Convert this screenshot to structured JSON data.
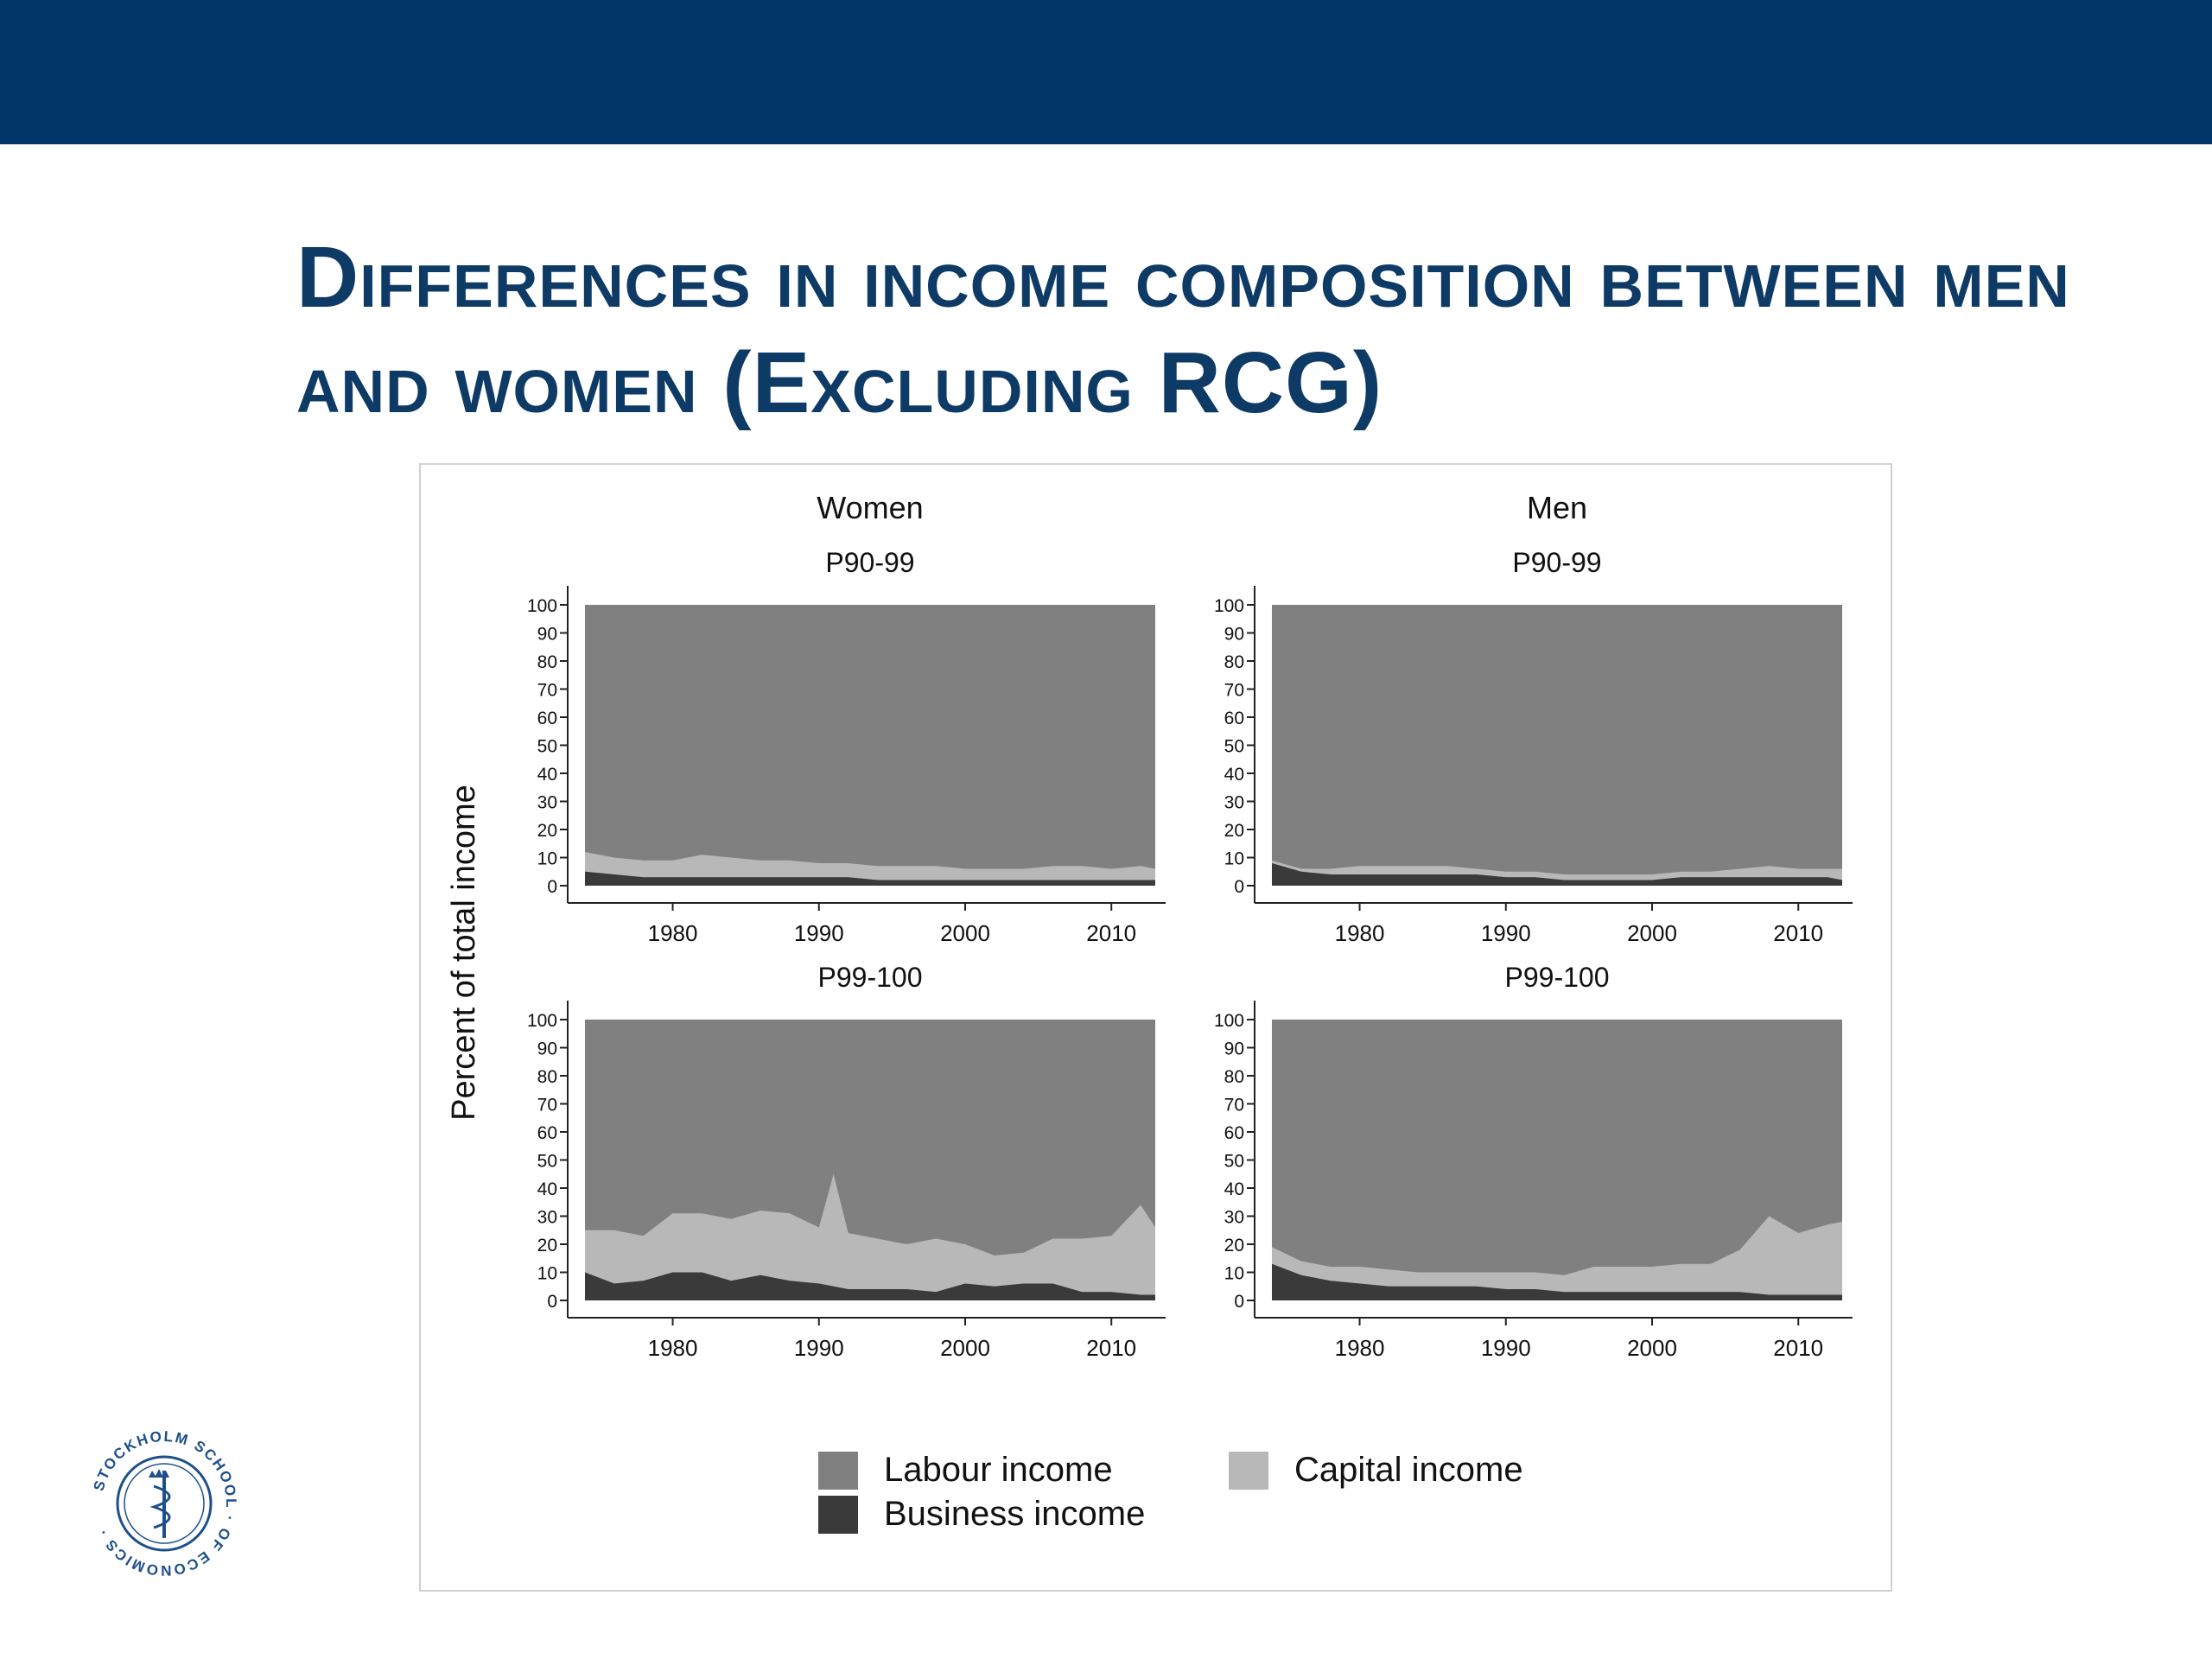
{
  "slide": {
    "title": "Differences in income composition between men and women (Excluding RCG)"
  },
  "logo": {
    "text": "STOCKHOLM SCHOOL OF ECONOMICS"
  },
  "colors": {
    "header_band": "#02366b",
    "title": "#0e3a66",
    "labour": "#808080",
    "capital": "#b8b8b8",
    "business": "#3a3a3a"
  },
  "chart_data": {
    "type": "area",
    "stacked": true,
    "ylabel": "Percent of total income",
    "columns": [
      "Women",
      "Men"
    ],
    "rows": [
      "P90-99",
      "P99-100"
    ],
    "xlim": [
      1974,
      2013
    ],
    "ylim": [
      0,
      100
    ],
    "x_ticks": [
      1980,
      1990,
      2000,
      2010
    ],
    "y_ticks": [
      0,
      10,
      20,
      30,
      40,
      50,
      60,
      70,
      80,
      90,
      100
    ],
    "x": [
      1974,
      1976,
      1978,
      1980,
      1982,
      1984,
      1986,
      1988,
      1990,
      1991,
      1992,
      1994,
      1996,
      1998,
      2000,
      2002,
      2004,
      2006,
      2008,
      2010,
      2012,
      2013
    ],
    "legend": [
      {
        "name": "Labour income",
        "key": "labour"
      },
      {
        "name": "Capital income",
        "key": "capital"
      },
      {
        "name": "Business income",
        "key": "business"
      }
    ],
    "legend_position": "bottom",
    "panels": [
      {
        "column": "Women",
        "row": "P90-99",
        "business": [
          5,
          4,
          3,
          3,
          3,
          3,
          3,
          3,
          3,
          3,
          3,
          2,
          2,
          2,
          2,
          2,
          2,
          2,
          2,
          2,
          2,
          2
        ],
        "capital": [
          7,
          6,
          6,
          6,
          8,
          7,
          6,
          6,
          5,
          5,
          5,
          5,
          5,
          5,
          4,
          4,
          4,
          5,
          5,
          4,
          5,
          4
        ]
      },
      {
        "column": "Men",
        "row": "P90-99",
        "business": [
          8,
          5,
          4,
          4,
          4,
          4,
          4,
          4,
          3,
          3,
          3,
          2,
          2,
          2,
          2,
          3,
          3,
          3,
          3,
          3,
          3,
          2
        ],
        "capital": [
          1,
          1,
          2,
          3,
          3,
          3,
          3,
          2,
          2,
          2,
          2,
          2,
          2,
          2,
          2,
          2,
          2,
          3,
          4,
          3,
          3,
          4
        ]
      },
      {
        "column": "Women",
        "row": "P99-100",
        "business": [
          10,
          6,
          7,
          10,
          10,
          7,
          9,
          7,
          6,
          5,
          4,
          4,
          4,
          3,
          6,
          5,
          6,
          6,
          3,
          3,
          2,
          2
        ],
        "capital": [
          15,
          19,
          16,
          21,
          21,
          22,
          23,
          24,
          20,
          40,
          20,
          18,
          16,
          19,
          14,
          11,
          11,
          16,
          19,
          20,
          32,
          24
        ]
      },
      {
        "column": "Men",
        "row": "P99-100",
        "business": [
          13,
          9,
          7,
          6,
          5,
          5,
          5,
          5,
          4,
          4,
          4,
          3,
          3,
          3,
          3,
          3,
          3,
          3,
          2,
          2,
          2,
          2
        ],
        "capital": [
          6,
          5,
          5,
          6,
          6,
          5,
          5,
          5,
          6,
          6,
          6,
          6,
          9,
          9,
          9,
          10,
          10,
          15,
          28,
          22,
          25,
          26
        ]
      }
    ]
  }
}
